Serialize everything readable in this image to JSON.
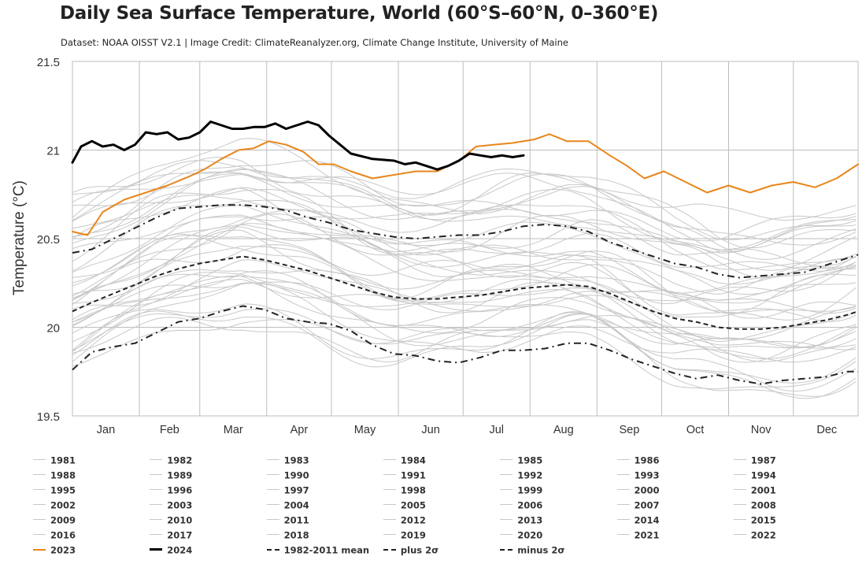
{
  "page": {
    "title": "Daily Sea Surface Temperature, World (60°S–60°N, 0–360°E)",
    "subtitle": "Dataset: NOAA OISST V2.1 | Image Credit: ClimateReanalyzer.org, Climate Change Institute, University of Maine"
  },
  "legend": {
    "years": [
      "1981",
      "1982",
      "1983",
      "1984",
      "1985",
      "1986",
      "1987",
      "1988",
      "1989",
      "1990",
      "1991",
      "1992",
      "1993",
      "1994",
      "1995",
      "1996",
      "1997",
      "1998",
      "1999",
      "2000",
      "2001",
      "2002",
      "2003",
      "2004",
      "2005",
      "2006",
      "2007",
      "2008",
      "2009",
      "2010",
      "2011",
      "2012",
      "2013",
      "2014",
      "2015",
      "2016",
      "2017",
      "2018",
      "2019",
      "2020",
      "2021",
      "2022"
    ],
    "highlight": [
      {
        "label": "2023",
        "color": "#e8861a",
        "style": "solid"
      },
      {
        "label": "2024",
        "color": "#000000",
        "style": "solid-thick"
      },
      {
        "label": "1982-2011 mean",
        "color": "#222222",
        "style": "dashed"
      },
      {
        "label": "plus 2σ",
        "color": "#222222",
        "style": "dashdot"
      },
      {
        "label": "minus 2σ",
        "color": "#222222",
        "style": "dashdot"
      }
    ]
  },
  "chart_data": {
    "type": "line",
    "ylabel": "Temperature (°C)",
    "xlabel": "",
    "ylim": [
      19.5,
      21.5
    ],
    "yticks": [
      19.5,
      20,
      20.5,
      21,
      21.5
    ],
    "ytick_labels": [
      "19.5",
      "20",
      "20.5",
      "21",
      "21.5"
    ],
    "xlim": [
      1,
      365
    ],
    "months": [
      "Jan",
      "Feb",
      "Mar",
      "Apr",
      "May",
      "Jun",
      "Jul",
      "Aug",
      "Sep",
      "Oct",
      "Nov",
      "Dec"
    ],
    "month_start_days": [
      1,
      32,
      60,
      91,
      121,
      152,
      182,
      213,
      244,
      274,
      305,
      335
    ],
    "grid": true,
    "colors": {
      "grey": "#c8c8c8",
      "y2023": "#e8861a",
      "y2024": "#000000",
      "stat": "#222222"
    },
    "series": [
      {
        "name": "2023",
        "color": "#e8861a",
        "width": 2,
        "dash": "",
        "x": [
          1,
          8,
          15,
          25,
          35,
          45,
          55,
          62,
          70,
          78,
          85,
          92,
          100,
          108,
          115,
          122,
          130,
          140,
          150,
          160,
          170,
          180,
          188,
          196,
          205,
          215,
          222,
          230,
          240,
          250,
          258,
          266,
          275,
          285,
          295,
          305,
          315,
          325,
          335,
          345,
          355,
          365
        ],
        "y": [
          20.54,
          20.52,
          20.65,
          20.72,
          20.76,
          20.8,
          20.85,
          20.89,
          20.95,
          21.0,
          21.01,
          21.05,
          21.03,
          20.99,
          20.92,
          20.92,
          20.88,
          20.84,
          20.86,
          20.88,
          20.88,
          20.94,
          21.02,
          21.03,
          21.04,
          21.06,
          21.09,
          21.05,
          21.05,
          20.97,
          20.91,
          20.84,
          20.88,
          20.82,
          20.76,
          20.8,
          20.76,
          20.8,
          20.82,
          20.79,
          20.84,
          20.92
        ]
      },
      {
        "name": "2024",
        "color": "#000000",
        "width": 3,
        "dash": "",
        "x": [
          1,
          5,
          10,
          15,
          20,
          25,
          30,
          35,
          40,
          45,
          50,
          55,
          60,
          65,
          70,
          75,
          80,
          85,
          90,
          95,
          100,
          105,
          110,
          115,
          120,
          125,
          130,
          140,
          150,
          155,
          160,
          165,
          170,
          175,
          180,
          185,
          190,
          195,
          200,
          205,
          210
        ],
        "y": [
          20.93,
          21.02,
          21.05,
          21.02,
          21.03,
          21.0,
          21.03,
          21.1,
          21.09,
          21.1,
          21.06,
          21.07,
          21.1,
          21.16,
          21.14,
          21.12,
          21.12,
          21.13,
          21.13,
          21.15,
          21.12,
          21.14,
          21.16,
          21.14,
          21.08,
          21.03,
          20.98,
          20.95,
          20.94,
          20.92,
          20.93,
          20.91,
          20.89,
          20.91,
          20.94,
          20.98,
          20.97,
          20.96,
          20.97,
          20.96,
          20.97
        ]
      },
      {
        "name": "plus 2σ",
        "color": "#222222",
        "width": 2,
        "dash": "9,5,2,5",
        "x": [
          1,
          10,
          20,
          30,
          40,
          50,
          60,
          70,
          80,
          90,
          100,
          110,
          120,
          130,
          140,
          150,
          160,
          170,
          180,
          190,
          200,
          210,
          220,
          230,
          240,
          250,
          260,
          270,
          280,
          290,
          300,
          310,
          320,
          330,
          340,
          350,
          360,
          365
        ],
        "y": [
          20.42,
          20.44,
          20.5,
          20.56,
          20.62,
          20.67,
          20.68,
          20.69,
          20.69,
          20.68,
          20.66,
          20.62,
          20.59,
          20.55,
          20.53,
          20.51,
          20.5,
          20.51,
          20.52,
          20.52,
          20.54,
          20.57,
          20.58,
          20.57,
          20.54,
          20.48,
          20.44,
          20.4,
          20.36,
          20.34,
          20.3,
          20.28,
          20.29,
          20.3,
          20.31,
          20.35,
          20.39,
          20.41
        ]
      },
      {
        "name": "1982-2011 mean",
        "color": "#222222",
        "width": 2,
        "dash": "6,4",
        "x": [
          1,
          10,
          20,
          30,
          40,
          50,
          60,
          70,
          80,
          90,
          100,
          110,
          120,
          130,
          140,
          150,
          160,
          170,
          180,
          190,
          200,
          210,
          220,
          230,
          240,
          250,
          260,
          270,
          280,
          290,
          300,
          310,
          320,
          330,
          340,
          350,
          360,
          365
        ],
        "y": [
          20.09,
          20.14,
          20.19,
          20.24,
          20.29,
          20.33,
          20.36,
          20.38,
          20.4,
          20.38,
          20.35,
          20.32,
          20.28,
          20.24,
          20.2,
          20.17,
          20.16,
          20.16,
          20.17,
          20.18,
          20.2,
          20.22,
          20.23,
          20.24,
          20.23,
          20.19,
          20.14,
          20.09,
          20.05,
          20.03,
          20.0,
          19.99,
          19.99,
          20.0,
          20.02,
          20.04,
          20.07,
          20.09
        ]
      },
      {
        "name": "minus 2σ",
        "color": "#222222",
        "width": 2,
        "dash": "9,5,2,5",
        "x": [
          1,
          10,
          20,
          30,
          40,
          50,
          60,
          70,
          80,
          90,
          100,
          110,
          120,
          130,
          140,
          150,
          160,
          170,
          180,
          190,
          200,
          210,
          220,
          230,
          240,
          250,
          260,
          270,
          280,
          290,
          300,
          310,
          320,
          330,
          340,
          350,
          360,
          365
        ],
        "y": [
          19.76,
          19.86,
          19.89,
          19.91,
          19.97,
          20.03,
          20.05,
          20.09,
          20.12,
          20.1,
          20.05,
          20.03,
          20.02,
          19.98,
          19.9,
          19.85,
          19.84,
          19.81,
          19.8,
          19.83,
          19.87,
          19.87,
          19.88,
          19.91,
          19.91,
          19.87,
          19.82,
          19.78,
          19.74,
          19.71,
          19.73,
          19.7,
          19.68,
          19.7,
          19.71,
          19.72,
          19.75,
          19.75
        ]
      }
    ]
  }
}
